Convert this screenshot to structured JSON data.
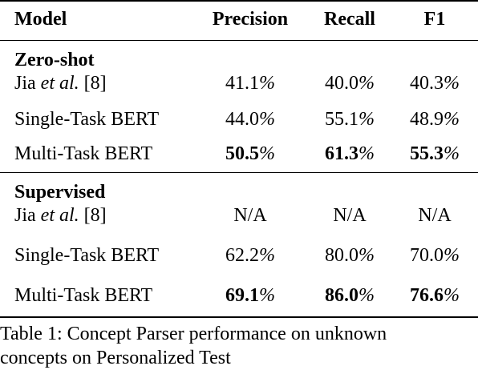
{
  "table": {
    "headers": [
      "Model",
      "Precision",
      "Recall",
      "F1"
    ],
    "groups": [
      {
        "name": "Zero-shot",
        "rows": [
          {
            "model_pre": "Jia ",
            "model_em": "et al.",
            "model_post": " [8]",
            "precision": "41.1",
            "recall": "40.0",
            "f1": "40.3",
            "bold": false
          },
          {
            "model": "Single-Task BERT",
            "precision": "44.0",
            "recall": "55.1",
            "f1": "48.9",
            "bold": false
          },
          {
            "model": "Multi-Task BERT",
            "precision": "50.5",
            "recall": "61.3",
            "f1": "55.3",
            "bold": true
          }
        ]
      },
      {
        "name": "Supervised",
        "rows": [
          {
            "model_pre": "Jia ",
            "model_em": "et al.",
            "model_post": " [8]",
            "precision": "N/A",
            "recall": "N/A",
            "f1": "N/A",
            "bold": false
          },
          {
            "model": "Single-Task BERT",
            "precision": "62.2",
            "recall": "80.0",
            "f1": "70.0",
            "bold": false
          },
          {
            "model": "Multi-Task BERT",
            "precision": "69.1",
            "recall": "86.0",
            "f1": "76.6",
            "bold": true
          }
        ]
      }
    ],
    "percent_sign": "%"
  },
  "caption": {
    "line1": "Table 1: Concept Parser performance on unknown",
    "line2": "concepts on Personalized Test"
  }
}
